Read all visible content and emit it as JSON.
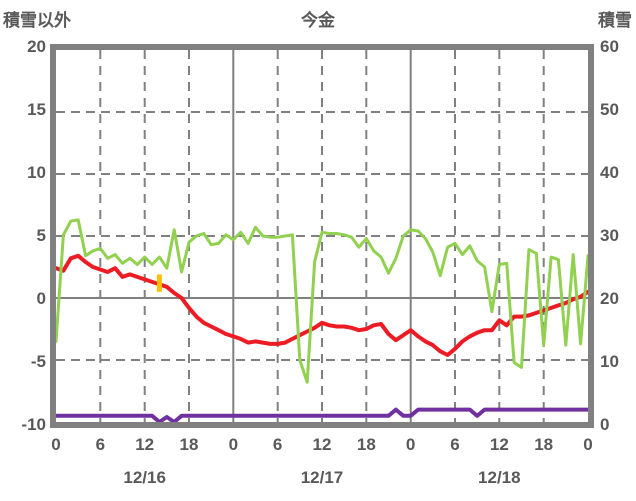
{
  "title": "今金",
  "colors": {
    "border_gray": "#808080",
    "grid_gray": "#808080",
    "text_gray": "#595959",
    "background": "#ffffff",
    "red_series": "#ed1c24",
    "green_series": "#92d050",
    "purple_series": "#7030a0",
    "orange_bar": "#ffc000"
  },
  "chart_data": {
    "type": "line",
    "title": "今金",
    "left_axis": {
      "label": "積雪以外",
      "min": -10,
      "max": 20,
      "ticks": [
        20,
        15,
        10,
        5,
        0,
        -5,
        -10
      ]
    },
    "right_axis": {
      "label": "積雪",
      "min": 0,
      "max": 60,
      "ticks": [
        60,
        50,
        40,
        30,
        20,
        10,
        0
      ]
    },
    "x_axis": {
      "hours_total": 72,
      "tick_interval": 6,
      "tick_labels": [
        "0",
        "6",
        "12",
        "18",
        "0",
        "6",
        "12",
        "18",
        "0",
        "6",
        "12",
        "18",
        "0"
      ],
      "day_labels": [
        "12/16",
        "12/17",
        "12/18"
      ],
      "day_label_hours": [
        12,
        36,
        60
      ],
      "day_boundary_hours": [
        24,
        48
      ],
      "grid": "dashed-6h-solid-day"
    },
    "series": [
      {
        "name": "red-line",
        "axis": "left",
        "color": "#ed1c24",
        "width": 4,
        "values": [
          2.4,
          2.2,
          3.2,
          3.4,
          2.9,
          2.5,
          2.3,
          2.1,
          2.4,
          1.7,
          1.9,
          1.7,
          1.5,
          1.3,
          1.1,
          0.9,
          0.4,
          0.0,
          -0.8,
          -1.5,
          -2.0,
          -2.3,
          -2.6,
          -2.9,
          -3.1,
          -3.3,
          -3.6,
          -3.5,
          -3.6,
          -3.7,
          -3.7,
          -3.6,
          -3.3,
          -3.0,
          -2.7,
          -2.4,
          -2.0,
          -2.2,
          -2.3,
          -2.3,
          -2.4,
          -2.6,
          -2.5,
          -2.2,
          -2.1,
          -2.9,
          -3.4,
          -3.0,
          -2.6,
          -3.1,
          -3.5,
          -3.8,
          -4.3,
          -4.6,
          -4.1,
          -3.5,
          -3.1,
          -2.8,
          -2.6,
          -2.6,
          -1.8,
          -2.2,
          -1.5,
          -1.5,
          -1.4,
          -1.2,
          -1.0,
          -0.8,
          -0.6,
          -0.4,
          -0.1,
          0.1,
          0.5
        ]
      },
      {
        "name": "green-line",
        "axis": "left",
        "color": "#92d050",
        "width": 3,
        "values": [
          -3.5,
          5.1,
          6.2,
          6.3,
          3.4,
          3.8,
          4.0,
          3.2,
          3.5,
          2.8,
          3.2,
          2.7,
          3.3,
          2.7,
          3.3,
          2.4,
          5.5,
          2.1,
          4.5,
          5.0,
          5.2,
          4.3,
          4.4,
          5.1,
          4.7,
          5.3,
          4.4,
          5.7,
          5.0,
          4.9,
          4.9,
          5.0,
          5.1,
          -5.0,
          -6.8,
          2.9,
          5.3,
          5.2,
          5.2,
          5.1,
          4.9,
          4.1,
          4.8,
          3.8,
          3.3,
          2.0,
          3.2,
          5.0,
          5.5,
          5.4,
          4.8,
          3.7,
          1.8,
          4.1,
          4.4,
          3.5,
          4.2,
          3.0,
          2.5,
          -1.1,
          2.7,
          2.8,
          -5.2,
          -5.6,
          3.9,
          3.6,
          -3.8,
          3.3,
          3.1,
          -3.8,
          3.5,
          -3.7,
          3.4
        ]
      },
      {
        "name": "purple-line",
        "axis": "right",
        "color": "#7030a0",
        "width": 4,
        "values": [
          1,
          1,
          1,
          1,
          1,
          1,
          1,
          1,
          1,
          1,
          1,
          1,
          1,
          1,
          0,
          0.8,
          0,
          1,
          1,
          1,
          1,
          1,
          1,
          1,
          1,
          1,
          1,
          1,
          1,
          1,
          1,
          1,
          1,
          1,
          1,
          1,
          1,
          1,
          1,
          1,
          1,
          1,
          1,
          1,
          1,
          1,
          2,
          1,
          1,
          2,
          2,
          2,
          2,
          2,
          2,
          2,
          2,
          1,
          2,
          2,
          2,
          2,
          2,
          2,
          2,
          2,
          2,
          2,
          2,
          2,
          2,
          2,
          2
        ]
      }
    ],
    "bar": {
      "name": "orange-bar",
      "axis": "left",
      "color": "#ffc000",
      "hour": 14,
      "from": 0.5,
      "to": 1.9
    }
  }
}
